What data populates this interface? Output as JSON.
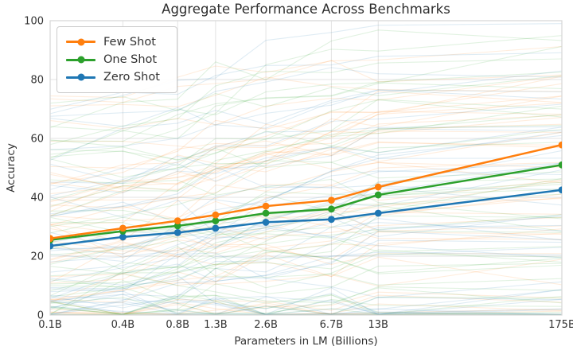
{
  "chart_data": {
    "type": "line",
    "title": "Aggregate Performance Across Benchmarks",
    "xlabel": "Parameters in LM (Billions)",
    "ylabel": "Accuracy",
    "x_scale": "log",
    "x": [
      0.125,
      0.35,
      0.76,
      1.3,
      2.65,
      6.7,
      13,
      175
    ],
    "x_tick_labels": [
      "0.1B",
      "0.4B",
      "0.8B",
      "1.3B",
      "2.6B",
      "6.7B",
      "13B",
      "175B"
    ],
    "y_ticks": [
      0,
      20,
      40,
      60,
      80,
      100
    ],
    "ylim": [
      0,
      100
    ],
    "grid": true,
    "legend_position": "upper-left",
    "series": [
      {
        "name": "Few Shot",
        "color": "#ff7f0e",
        "values": [
          26.0,
          29.5,
          32.0,
          34.0,
          37.0,
          39.0,
          43.5,
          57.8
        ]
      },
      {
        "name": "One Shot",
        "color": "#2ca02c",
        "values": [
          25.5,
          28.5,
          30.3,
          32.0,
          34.6,
          36.0,
          40.8,
          51.0
        ]
      },
      {
        "name": "Zero Shot",
        "color": "#1f77b4",
        "values": [
          23.5,
          26.5,
          28.0,
          29.5,
          31.5,
          32.5,
          34.6,
          42.5
        ]
      }
    ],
    "background_lines": {
      "count_per_series": 42,
      "opacity": 0.14,
      "seed": 12
    }
  },
  "colors": {
    "grid": "#e3e3e3",
    "spine": "#d9d9d9",
    "text": "#333333",
    "background": "#ffffff"
  }
}
